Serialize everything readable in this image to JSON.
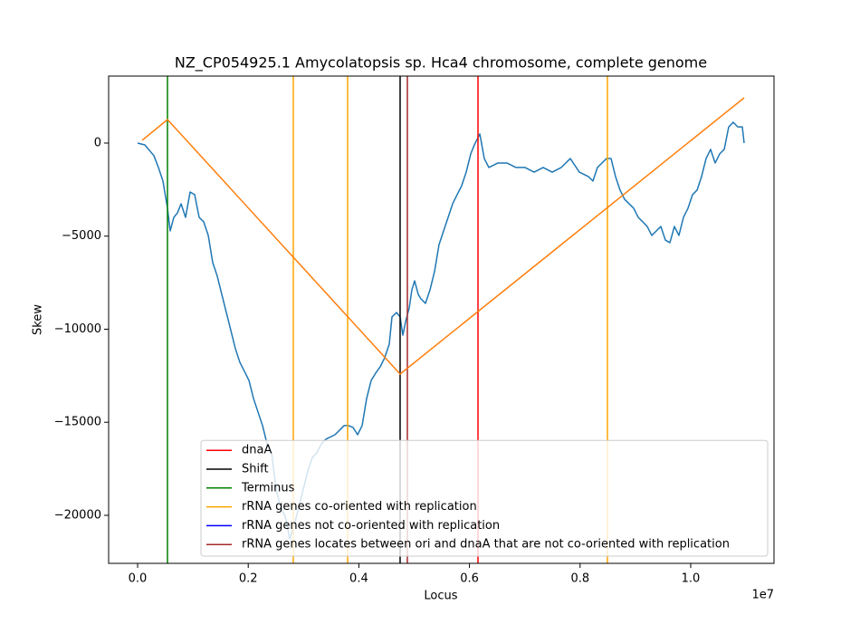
{
  "chart_data": {
    "type": "line",
    "title": "NZ_CP054925.1 Amycolatopsis sp. Hca4 chromosome, complete genome",
    "x_label": "Locus",
    "y_label": "Skew",
    "x_offset_label": "1e7",
    "xlim": [
      -524000,
      11506000
    ],
    "ylim": [
      -22580,
      3600
    ],
    "xticks": [
      {
        "value": 0,
        "label": "0.0"
      },
      {
        "value": 2000000,
        "label": "0.2"
      },
      {
        "value": 4000000,
        "label": "0.4"
      },
      {
        "value": 6000000,
        "label": "0.6"
      },
      {
        "value": 8000000,
        "label": "0.8"
      },
      {
        "value": 10000000,
        "label": "1.0"
      }
    ],
    "yticks": [
      {
        "value": -20000,
        "label": "−20000"
      },
      {
        "value": -15000,
        "label": "−15000"
      },
      {
        "value": -10000,
        "label": "−10000"
      },
      {
        "value": -5000,
        "label": "−5000"
      },
      0
    ],
    "legend": "lower right",
    "series": [
      {
        "color": "#1f77b4",
        "x": [
          0,
          131000,
          295000,
          376000,
          458000,
          540000,
          589000,
          655000,
          720000,
          786000,
          867000,
          949000,
          1031000,
          1113000,
          1195000,
          1277000,
          1358000,
          1440000,
          1522000,
          1604000,
          1686000,
          1768000,
          1849000,
          1931000,
          2013000,
          2095000,
          2177000,
          2259000,
          2340000,
          2422000,
          2504000,
          2586000,
          2668000,
          2750000,
          2831000,
          2913000,
          2995000,
          3077000,
          3159000,
          3241000,
          3323000,
          3404000,
          3568000,
          3650000,
          3732000,
          3813000,
          3895000,
          3977000,
          4059000,
          4141000,
          4223000,
          4304000,
          4386000,
          4468000,
          4550000,
          4599000,
          4681000,
          4746000,
          4795000,
          4845000,
          4910000,
          4959000,
          5008000,
          5074000,
          5123000,
          5205000,
          5287000,
          5368000,
          5450000,
          5532000,
          5614000,
          5696000,
          5777000,
          5859000,
          5941000,
          6023000,
          6088000,
          6187000,
          6268000,
          6350000,
          6514000,
          6678000,
          6841000,
          7005000,
          7169000,
          7332000,
          7496000,
          7659000,
          7823000,
          7987000,
          8150000,
          8232000,
          8314000,
          8478000,
          8560000,
          8641000,
          8723000,
          8805000,
          8969000,
          9051000,
          9133000,
          9214000,
          9296000,
          9378000,
          9460000,
          9542000,
          9624000,
          9705000,
          9787000,
          9869000,
          9951000,
          10033000,
          10115000,
          10196000,
          10278000,
          10360000,
          10442000,
          10524000,
          10606000,
          10687000,
          10769000,
          10851000,
          10933000,
          10966000
        ],
        "values": [
          0,
          -100,
          -680,
          -1310,
          -2040,
          -3500,
          -4720,
          -3990,
          -3750,
          -3260,
          -3990,
          -2630,
          -2770,
          -3990,
          -4230,
          -4960,
          -6420,
          -7150,
          -8130,
          -9100,
          -10070,
          -11050,
          -11780,
          -12260,
          -12750,
          -13720,
          -14450,
          -15180,
          -16160,
          -16640,
          -18590,
          -19560,
          -20050,
          -21260,
          -20530,
          -19560,
          -18590,
          -17620,
          -16890,
          -16640,
          -16160,
          -15910,
          -15670,
          -15430,
          -15180,
          -15180,
          -15280,
          -15670,
          -15180,
          -13720,
          -12750,
          -12360,
          -12020,
          -11530,
          -10800,
          -9340,
          -9100,
          -9340,
          -10320,
          -9590,
          -8860,
          -7880,
          -7400,
          -8130,
          -8370,
          -8610,
          -7880,
          -6910,
          -5450,
          -4720,
          -3990,
          -3260,
          -2770,
          -2290,
          -1560,
          -580,
          -100,
          490,
          -830,
          -1310,
          -1070,
          -1070,
          -1310,
          -1310,
          -1560,
          -1310,
          -1560,
          -1310,
          -830,
          -1560,
          -1800,
          -2040,
          -1310,
          -830,
          -830,
          -1800,
          -2530,
          -3020,
          -3500,
          -3990,
          -4230,
          -4480,
          -4960,
          -4720,
          -4480,
          -5210,
          -5350,
          -4480,
          -4960,
          -3990,
          -3500,
          -2770,
          -2530,
          -1800,
          -830,
          -340,
          -1070,
          -580,
          -340,
          870,
          1120,
          870,
          870,
          0
        ]
      },
      {
        "color": "#ff7f0e",
        "x": [
          82000,
          540000,
          4746000,
          10966000
        ],
        "values": [
          146,
          1265,
          -12409,
          2433
        ]
      }
    ],
    "vlines": [
      {
        "name": "dnaA",
        "color": "#ff0000",
        "x": [
          6154000
        ]
      },
      {
        "name": "Shift",
        "color": "#000000",
        "x": [
          4746000
        ]
      },
      {
        "name": "Terminus",
        "color": "#008000",
        "x": [
          540000
        ]
      },
      {
        "name": "rRNA genes co-oriented with replication",
        "color": "#ffa500",
        "x": [
          2815000,
          3797000,
          8494000
        ]
      },
      {
        "name": "rRNA genes not co-oriented with replication",
        "color": "#0000ff",
        "x": []
      },
      {
        "name": "rRNA genes locates between ori and dnaA that are not co-oriented with replication",
        "color": "#a52a2a",
        "x": [
          4877000
        ]
      }
    ]
  }
}
